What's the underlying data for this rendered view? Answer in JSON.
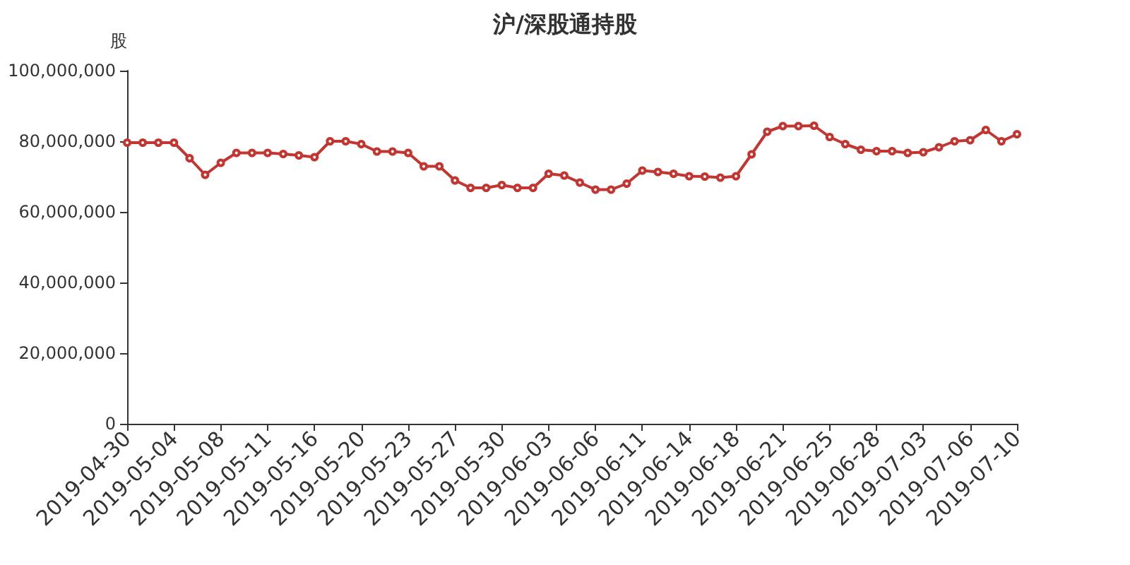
{
  "chart_data": {
    "type": "line",
    "title": "沪/深股通持股",
    "ylabel": "股",
    "categories": [
      "2019-04-30",
      null,
      null,
      "2019-05-04",
      null,
      null,
      "2019-05-08",
      null,
      null,
      "2019-05-11",
      null,
      null,
      "2019-05-16",
      null,
      null,
      "2019-05-20",
      null,
      null,
      "2019-05-23",
      null,
      null,
      "2019-05-27",
      null,
      null,
      "2019-05-30",
      null,
      null,
      "2019-06-03",
      null,
      null,
      "2019-06-06",
      null,
      null,
      "2019-06-11",
      null,
      null,
      "2019-06-14",
      null,
      null,
      "2019-06-18",
      null,
      null,
      "2019-06-21",
      null,
      null,
      "2019-06-25",
      null,
      null,
      "2019-06-28",
      null,
      null,
      "2019-07-03",
      null,
      null,
      "2019-07-06",
      null,
      null,
      "2019-07-10"
    ],
    "series": [
      {
        "color": "#c23531",
        "values": [
          79600000,
          79600000,
          79600000,
          79600000,
          75200000,
          70500000,
          73900000,
          76700000,
          76700000,
          76700000,
          76400000,
          76000000,
          75500000,
          80000000,
          80000000,
          79200000,
          77100000,
          77100000,
          76700000,
          72900000,
          72900000,
          68900000,
          66800000,
          66800000,
          67600000,
          66800000,
          66800000,
          70800000,
          70300000,
          68300000,
          66300000,
          66300000,
          68000000,
          71700000,
          71300000,
          70800000,
          70100000,
          70000000,
          69700000,
          70100000,
          76300000,
          82700000,
          84300000,
          84300000,
          84400000,
          81200000,
          79200000,
          77600000,
          77200000,
          77200000,
          76700000,
          76900000,
          78300000,
          80000000,
          80300000,
          83200000,
          80000000,
          82000000
        ]
      }
    ],
    "ylim": [
      0,
      100000000
    ],
    "yticks": [
      0,
      {
        "value": 20000000,
        "label": "20,000,000"
      },
      {
        "value": 40000000,
        "label": "40,000,000"
      },
      {
        "value": 60000000,
        "label": "60,000,000"
      },
      {
        "value": 80000000,
        "label": "80,000,000"
      },
      {
        "value": 100000000,
        "label": "100,000,000"
      }
    ],
    "grid": false,
    "marker": "circle",
    "line_style": "solid"
  }
}
